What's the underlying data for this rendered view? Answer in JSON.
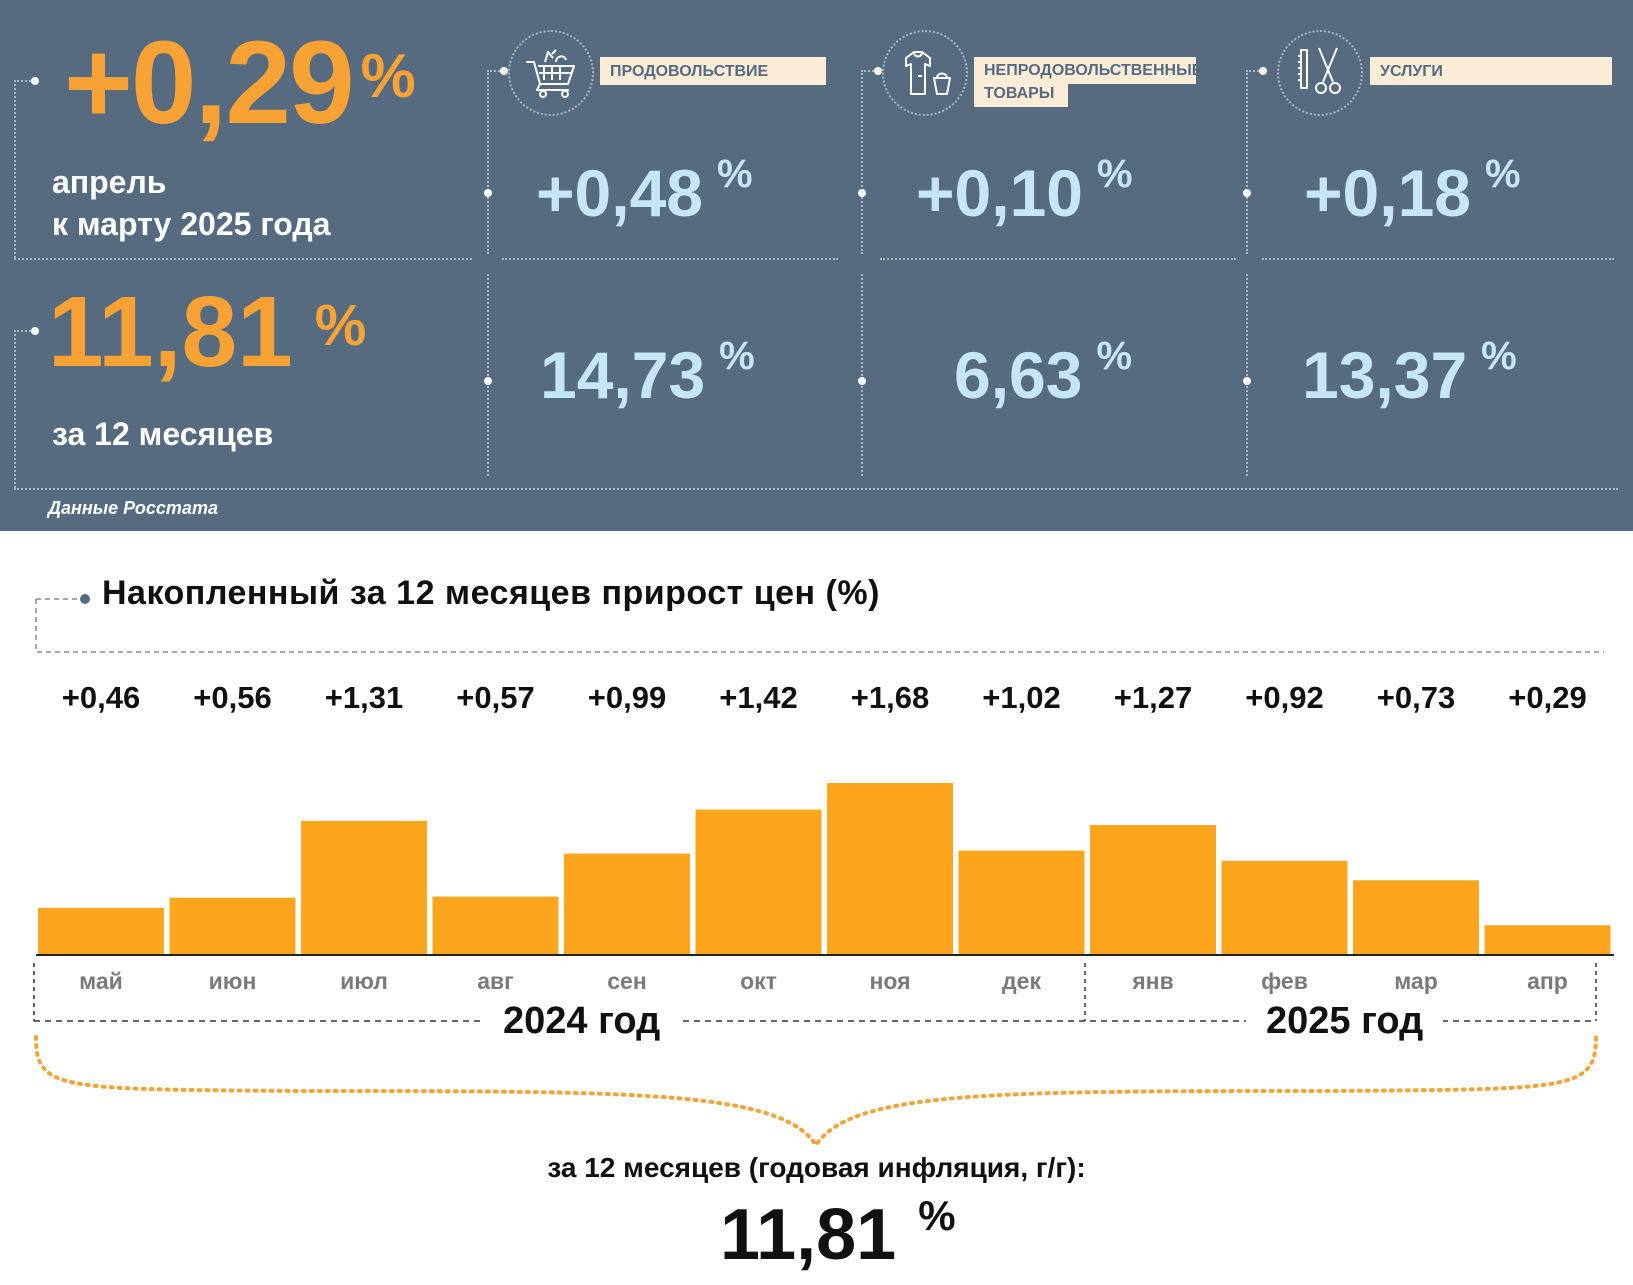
{
  "monthly": {
    "value": "+0,29",
    "unit": "%",
    "label_line1": "апрель",
    "label_line2": "к марту 2025 года"
  },
  "annual": {
    "value": "11,81",
    "unit": "%",
    "label": "за 12 месяцев"
  },
  "categories": [
    {
      "name": "ПРОДОВОЛЬСТВИЕ",
      "icon": "shopping-cart-icon",
      "monthly": "+0,48",
      "annual": "14,73",
      "unit": "%"
    },
    {
      "name_line1": "НЕПРОДОВОЛЬСТВЕННЫЕ",
      "name_line2": "ТОВАРЫ",
      "icon": "clothing-icon",
      "monthly": "+0,10",
      "annual": "6,63",
      "unit": "%"
    },
    {
      "name": "УСЛУГИ",
      "icon": "scissors-comb-icon",
      "monthly": "+0,18",
      "annual": "13,37",
      "unit": "%"
    }
  ],
  "source": "Данные Росстата",
  "colors": {
    "panel": "#566a80",
    "accent": "#f7a234",
    "light_blue": "#c6e5f6",
    "bar": "#fca51d"
  },
  "chart_data": {
    "type": "bar",
    "title": "Накопленный за 12 месяцев прирост цен (%)",
    "categories": [
      "май",
      "июн",
      "июл",
      "авг",
      "сен",
      "окт",
      "ноя",
      "дек",
      "янв",
      "фев",
      "мар",
      "апр"
    ],
    "values": [
      0.46,
      0.56,
      1.31,
      0.57,
      0.99,
      1.42,
      1.68,
      1.02,
      1.27,
      0.92,
      0.73,
      0.29
    ],
    "value_labels": [
      "+0,46",
      "+0,56",
      "+1,31",
      "+0,57",
      "+0,99",
      "+1,42",
      "+1,68",
      "+1,02",
      "+1,27",
      "+0,92",
      "+0,73",
      "+0,29"
    ],
    "year_groups": [
      {
        "label": "2024 год",
        "months": 8
      },
      {
        "label": "2025 год",
        "months": 4
      }
    ],
    "ylim": [
      0,
      1.68
    ],
    "xlabel": "",
    "ylabel": "",
    "summary_label": "за 12 месяцев (годовая инфляция, г/г):",
    "summary_value": "11,81",
    "summary_unit": "%"
  }
}
